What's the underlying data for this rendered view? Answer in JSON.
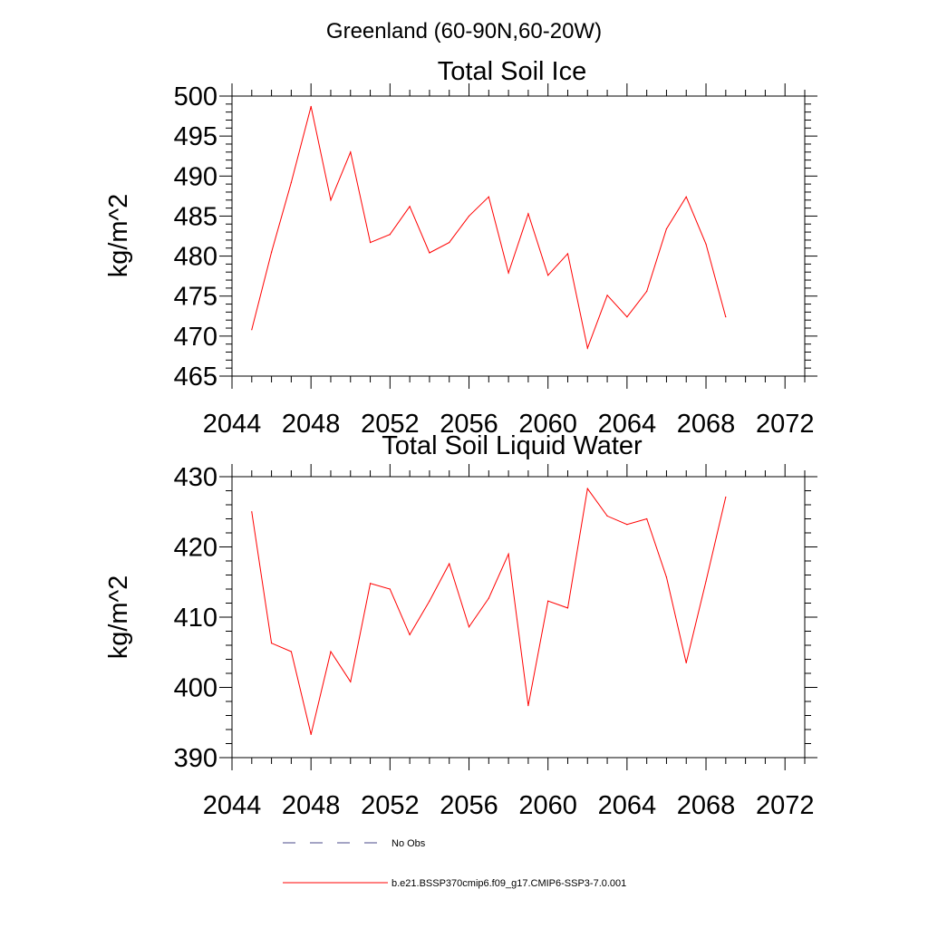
{
  "figure_title": "Greenland (60-90N,60-20W)",
  "chart_data": [
    {
      "type": "line",
      "title": "Total Soil Ice",
      "xlabel": "",
      "ylabel": "kg/m^2",
      "xlim": [
        2044,
        2073
      ],
      "ylim": [
        465,
        500
      ],
      "x_ticks": [
        2044,
        2048,
        2052,
        2056,
        2060,
        2064,
        2068,
        2072
      ],
      "x_tick_labels": [
        "2044",
        "2048",
        "2052",
        "2056",
        "2060",
        "2064",
        "2068",
        "2072"
      ],
      "y_ticks": [
        465,
        470,
        475,
        480,
        485,
        490,
        495,
        500
      ],
      "y_tick_labels": [
        "465",
        "470",
        "475",
        "480",
        "485",
        "490",
        "495",
        "500"
      ],
      "grid": false,
      "series": [
        {
          "name": "b.e21.BSSP370cmip6.f09_g17.CMIP6-SSP3-7.0.001",
          "color": "#ff0000",
          "x": [
            2045,
            2046,
            2047,
            2048,
            2049,
            2050,
            2051,
            2052,
            2053,
            2054,
            2055,
            2056,
            2057,
            2058,
            2059,
            2060,
            2061,
            2062,
            2063,
            2064,
            2065,
            2066,
            2067,
            2068,
            2069
          ],
          "values": [
            470.8,
            480.5,
            489.2,
            498.7,
            487.0,
            493.0,
            481.7,
            482.7,
            486.2,
            480.4,
            481.7,
            485.0,
            487.4,
            477.9,
            485.3,
            477.6,
            480.3,
            468.5,
            475.1,
            472.4,
            475.6,
            483.4,
            487.4,
            481.5,
            472.4
          ]
        }
      ]
    },
    {
      "type": "line",
      "title": "Total Soil Liquid Water",
      "xlabel": "",
      "ylabel": "kg/m^2",
      "xlim": [
        2044,
        2073
      ],
      "ylim": [
        390,
        430
      ],
      "x_ticks": [
        2044,
        2048,
        2052,
        2056,
        2060,
        2064,
        2068,
        2072
      ],
      "x_tick_labels": [
        "2044",
        "2048",
        "2052",
        "2056",
        "2060",
        "2064",
        "2068",
        "2072"
      ],
      "y_ticks": [
        390,
        400,
        410,
        420,
        430
      ],
      "y_tick_labels": [
        "390",
        "400",
        "410",
        "420",
        "430"
      ],
      "grid": false,
      "series": [
        {
          "name": "b.e21.BSSP370cmip6.f09_g17.CMIP6-SSP3-7.0.001",
          "color": "#ff0000",
          "x": [
            2045,
            2046,
            2047,
            2048,
            2049,
            2050,
            2051,
            2052,
            2053,
            2054,
            2055,
            2056,
            2057,
            2058,
            2059,
            2060,
            2061,
            2062,
            2063,
            2064,
            2065,
            2066,
            2067,
            2068,
            2069
          ],
          "values": [
            425.0,
            406.3,
            405.1,
            393.3,
            405.1,
            400.8,
            414.8,
            414.0,
            407.5,
            412.3,
            417.6,
            408.6,
            412.7,
            419.0,
            397.4,
            412.3,
            411.3,
            428.3,
            424.4,
            423.2,
            424.0,
            415.7,
            403.5,
            415.1,
            427.1
          ]
        }
      ]
    }
  ],
  "legend": {
    "placement": "bottom",
    "items": [
      {
        "label": "No Obs",
        "color": "#4a4a8a",
        "style": "dashed"
      },
      {
        "label": "b.e21.BSSP370cmip6.f09_g17.CMIP6-SSP3-7.0.001",
        "color": "#ff0000",
        "style": "solid"
      }
    ]
  }
}
